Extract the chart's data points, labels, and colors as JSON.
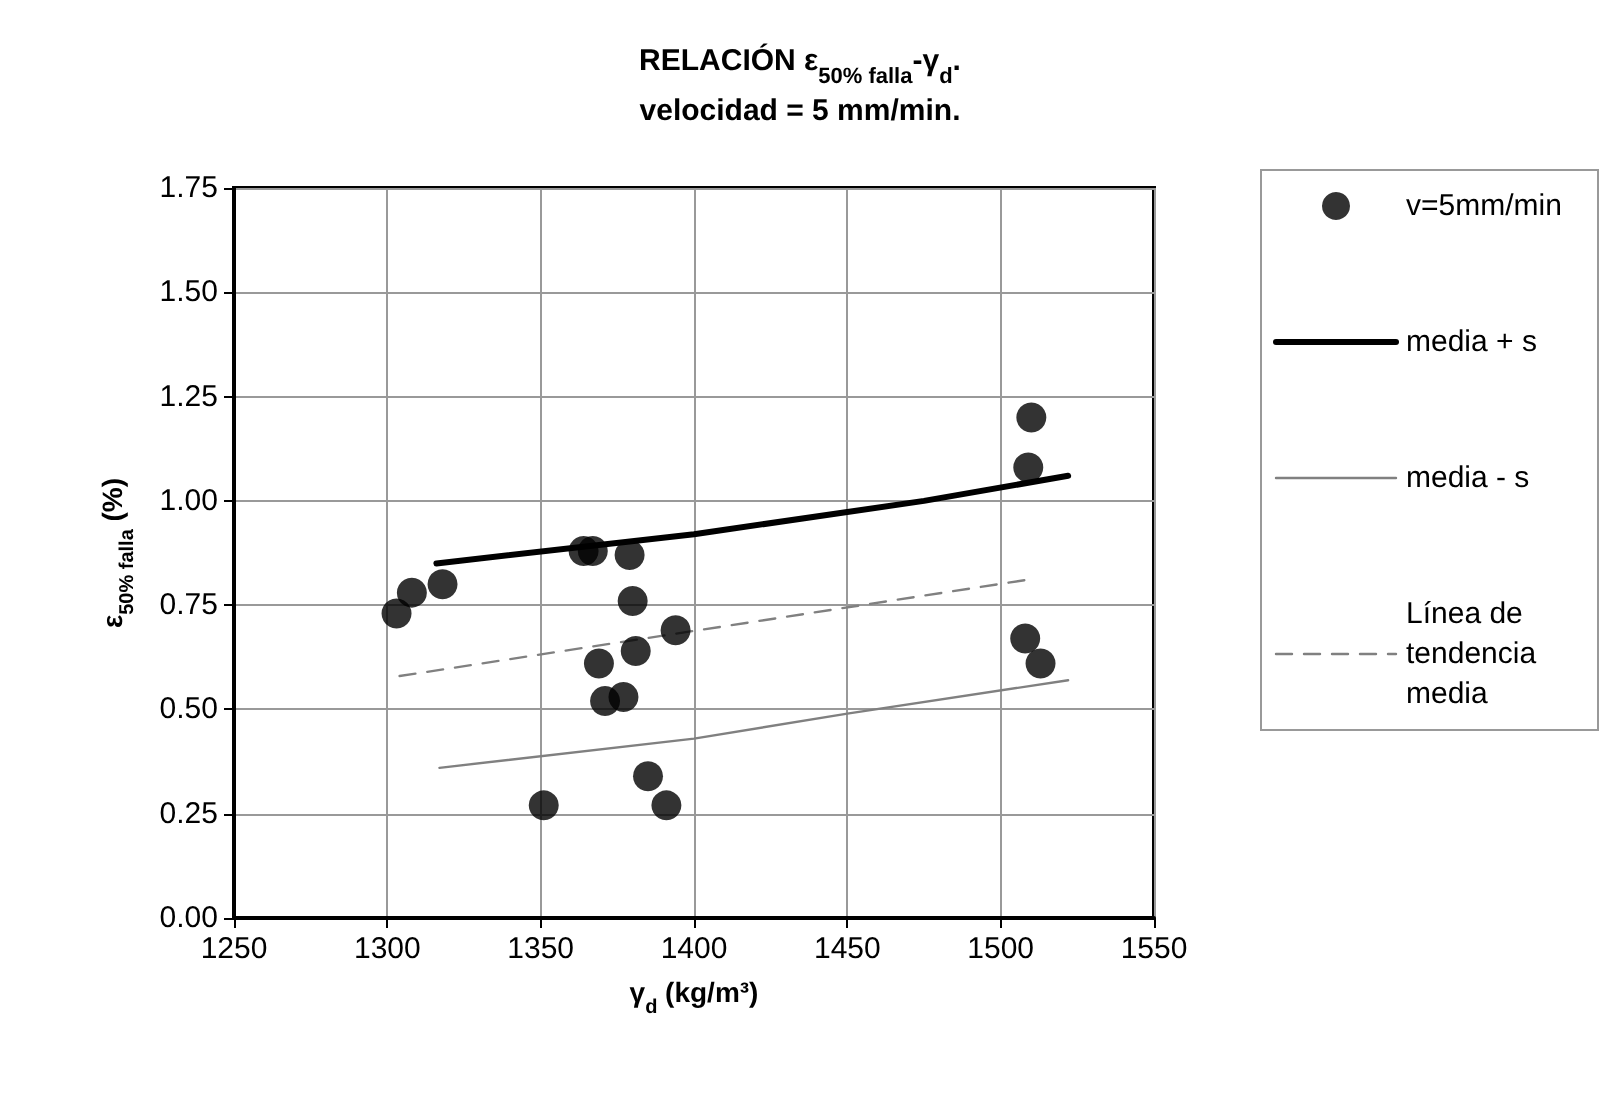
{
  "chart_data": {
    "type": "scatter",
    "title": "RELACIÓN ε$_{50% falla}$-γ$_{d}$.",
    "subtitle": "velocidad = 5 mm/min.",
    "xlabel": "γ$_{d}$ (kg/m³)",
    "ylabel": "ε$_{50% falla}$ (%)",
    "xlim": [
      1250,
      1550
    ],
    "xticks": [
      1250,
      1300,
      1350,
      1400,
      1450,
      1500,
      1550
    ],
    "ylim": [
      0,
      1.75
    ],
    "yticks": [
      {
        "value": 0,
        "label": "0.00"
      },
      {
        "value": 0.25,
        "label": "0.25"
      },
      {
        "value": 0.5,
        "label": "0.50"
      },
      {
        "value": 0.75,
        "label": "0.75"
      },
      {
        "value": 1,
        "label": "1.00"
      },
      {
        "value": 1.25,
        "label": "1.25"
      },
      {
        "value": 1.5,
        "label": "1.50"
      },
      {
        "value": 1.75,
        "label": "1.75"
      }
    ],
    "grid": true,
    "legend": "right",
    "series": [
      {
        "name": "v=5mm/min",
        "type": "scatter",
        "marker": "circle",
        "color": "#000000",
        "x": [
          1303,
          1308,
          1318,
          1364,
          1367,
          1379,
          1380,
          1369,
          1381,
          1394,
          1371,
          1377,
          1351,
          1385,
          1391,
          1510,
          1509,
          1508,
          1513
        ],
        "values": [
          0.73,
          0.78,
          0.8,
          0.88,
          0.88,
          0.87,
          0.76,
          0.61,
          0.64,
          0.69,
          0.52,
          0.53,
          0.27,
          0.34,
          0.27,
          1.2,
          1.08,
          0.67,
          0.61
        ]
      },
      {
        "name": "media + s",
        "type": "line",
        "marker": "none",
        "line_style": "solid",
        "color": "#000000",
        "x": [
          1316,
          1400,
          1475,
          1522
        ],
        "values": [
          0.85,
          0.92,
          1.0,
          1.06
        ]
      },
      {
        "name": "media - s",
        "type": "line",
        "marker": "none",
        "line_style": "solid",
        "color": "#808080",
        "x": [
          1317,
          1400,
          1450,
          1522
        ],
        "values": [
          0.36,
          0.43,
          0.49,
          0.57
        ]
      },
      {
        "name": "Línea de tendencia media",
        "type": "line",
        "marker": "none",
        "line_style": "dashed",
        "color": "#808080",
        "x": [
          1304,
          1508
        ],
        "values": [
          0.58,
          0.81
        ]
      }
    ]
  }
}
